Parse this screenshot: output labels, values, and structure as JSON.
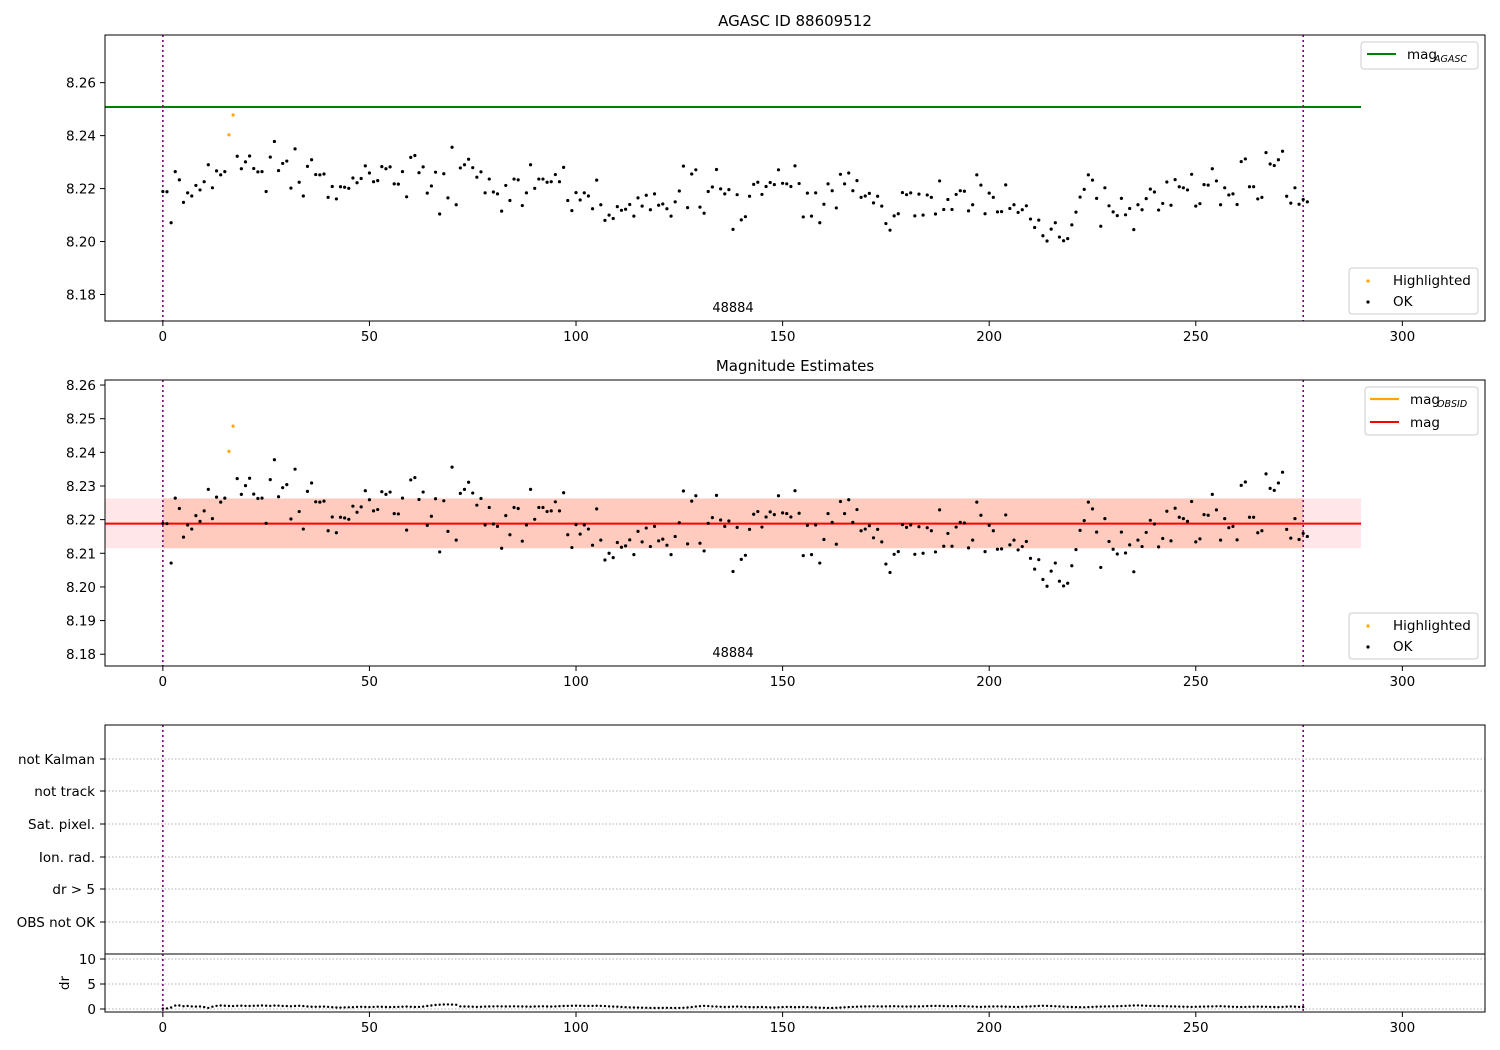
{
  "chart_data": [
    {
      "type": "scatter",
      "title": "AGASC ID 88609512",
      "xlim": [
        -14,
        320
      ],
      "ylim": [
        8.17,
        8.278
      ],
      "xticks": [
        0,
        50,
        100,
        150,
        200,
        250,
        300
      ],
      "yticks": [
        8.18,
        8.2,
        8.22,
        8.24,
        8.26
      ],
      "obsid_label": "48884",
      "obsid_label_x": 138,
      "vlines_x": [
        0,
        276
      ],
      "hlines": [
        {
          "y": 8.2508,
          "x0": -14,
          "x1": 290,
          "color": "#008000",
          "legend": "mag",
          "sub": "AGASC"
        }
      ],
      "highlighted_points": [
        [
          16,
          8.2403
        ],
        [
          17,
          8.2478
        ]
      ],
      "ok_series": "mags",
      "legend_top": [
        {
          "label": "mag",
          "sub": "AGASC",
          "color": "#008000",
          "kind": "line"
        }
      ],
      "legend_bottom": [
        {
          "label": "Highlighted",
          "color": "#ffa500",
          "kind": "dot"
        },
        {
          "label": "OK",
          "color": "#000000",
          "kind": "dot"
        }
      ]
    },
    {
      "type": "scatter",
      "title": "Magnitude Estimates",
      "xlim": [
        -14,
        320
      ],
      "ylim": [
        8.1765,
        8.2615
      ],
      "xticks": [
        0,
        50,
        100,
        150,
        200,
        250,
        300
      ],
      "yticks": [
        8.18,
        8.19,
        8.2,
        8.21,
        8.22,
        8.23,
        8.24,
        8.25,
        8.26
      ],
      "obsid_label": "48884",
      "obsid_label_x": 138,
      "vlines_x": [
        0,
        276
      ],
      "hlines": [
        {
          "y": 8.2188,
          "x0": -14,
          "x1": 290,
          "color": "#ff0000",
          "legend": "mag"
        }
      ],
      "bands": [
        {
          "y0": 8.2115,
          "y1": 8.2263,
          "x0": -14,
          "x1": 290,
          "color": "#ffb6c1",
          "opacity": 0.35
        },
        {
          "y0": 8.2115,
          "y1": 8.2263,
          "x0": 0,
          "x1": 276,
          "color": "#ffa07a",
          "opacity": 0.38
        }
      ],
      "highlighted_points": [
        [
          16,
          8.2403
        ],
        [
          17,
          8.2478
        ]
      ],
      "ok_series": "mags",
      "legend_top": [
        {
          "label": "mag",
          "sub": "OBSID",
          "color": "#ffa500",
          "kind": "line"
        },
        {
          "label": "mag",
          "color": "#ff0000",
          "kind": "line"
        }
      ],
      "legend_bottom": [
        {
          "label": "Highlighted",
          "color": "#ffa500",
          "kind": "dot"
        },
        {
          "label": "OK",
          "color": "#000000",
          "kind": "dot"
        }
      ]
    },
    {
      "type": "table",
      "title": "",
      "rows": [
        "not Kalman",
        "not track",
        "Sat. pixel.",
        "Ion. rad.",
        "dr > 5",
        "OBS not OK"
      ],
      "xlim": [
        -14,
        320
      ],
      "vlines_x": [
        0,
        276
      ]
    },
    {
      "type": "line",
      "title": "",
      "ylabel": "dr",
      "xlim": [
        -14,
        320
      ],
      "ylim": [
        -0.6,
        11
      ],
      "yticks": [
        0,
        5,
        10
      ],
      "xticks": [
        0,
        50,
        100,
        150,
        200,
        250,
        300
      ],
      "vlines_x": [
        0,
        276
      ],
      "series_ref": "dr"
    }
  ],
  "series": {
    "mags": [
      8.2189,
      8.2188,
      8.2071,
      8.2264,
      8.2233,
      8.2148,
      8.2184,
      8.2172,
      8.2212,
      8.2195,
      8.2226,
      8.229,
      8.2203,
      8.2267,
      8.2252,
      8.2264,
      8.2403,
      8.2478,
      8.2322,
      8.2275,
      8.2301,
      8.2323,
      8.2276,
      8.2263,
      8.2264,
      8.2189,
      8.2319,
      8.2378,
      8.2268,
      8.2295,
      8.2304,
      8.2202,
      8.235,
      8.2224,
      8.2172,
      8.2284,
      8.2309,
      8.2253,
      8.2252,
      8.2255,
      8.2167,
      8.2208,
      8.2161,
      8.2207,
      8.2205,
      8.2201,
      8.224,
      8.2222,
      8.2238,
      8.2286,
      8.2259,
      8.2226,
      8.223,
      8.2283,
      8.2275,
      8.2282,
      8.2218,
      8.2217,
      8.2264,
      8.2169,
      8.2318,
      8.2325,
      8.226,
      8.2282,
      8.2183,
      8.221,
      8.2262,
      8.2104,
      8.2256,
      8.2165,
      8.2356,
      8.2139,
      8.2278,
      8.229,
      8.2311,
      8.2279,
      8.2243,
      8.2263,
      8.2184,
      8.2236,
      8.2187,
      8.218,
      8.2115,
      8.2212,
      8.2155,
      8.2236,
      8.2233,
      8.2136,
      8.2184,
      8.229,
      8.2201,
      8.2236,
      8.2236,
      8.2224,
      8.2226,
      8.2253,
      8.2226,
      8.228,
      8.2155,
      8.2117,
      8.2185,
      8.2157,
      8.2184,
      8.2172,
      8.2124,
      8.2232,
      8.2139,
      8.208,
      8.21,
      8.2087,
      8.2132,
      8.2118,
      8.2122,
      8.214,
      8.2096,
      8.2165,
      8.2134,
      8.2175,
      8.212,
      8.218,
      8.2137,
      8.2142,
      8.2124,
      8.2096,
      8.215,
      8.2191,
      8.2285,
      8.2128,
      8.2255,
      8.2271,
      8.213,
      8.2107,
      8.2189,
      8.2206,
      8.2272,
      8.2199,
      8.218,
      8.2196,
      8.2046,
      8.2177,
      8.2082,
      8.2094,
      8.2171,
      8.2216,
      8.2224,
      8.2178,
      8.2208,
      8.2223,
      8.2215,
      8.2271,
      8.222,
      8.2218,
      8.2208,
      8.2286,
      8.2219,
      8.2093,
      8.2183,
      8.2096,
      8.2184,
      8.2071,
      8.2141,
      8.2218,
      8.2192,
      8.2127,
      8.2254,
      8.2218,
      8.2259,
      8.2192,
      8.223,
      8.2167,
      8.2172,
      8.2182,
      8.2146,
      8.2171,
      8.2134,
      8.2068,
      8.2043,
      8.2097,
      8.2105,
      8.2185,
      8.2177,
      8.2184,
      8.2097,
      8.2179,
      8.21,
      8.2176,
      8.2167,
      8.2104,
      8.2229,
      8.2121,
      8.2159,
      8.2121,
      8.2178,
      8.2192,
      8.219,
      8.2116,
      8.2139,
      8.2252,
      8.2213,
      8.2105,
      8.2183,
      8.2167,
      8.2112,
      8.2113,
      8.2214,
      8.2125,
      8.2139,
      8.211,
      8.212,
      8.2135,
      8.2085,
      8.2053,
      8.2081,
      8.2022,
      8.2002,
      8.2047,
      8.2071,
      8.2017,
      8.2003,
      8.2011,
      8.2063,
      8.2111,
      8.2168,
      8.2197,
      8.2252,
      8.2232,
      8.2163,
      8.2058,
      8.2203,
      8.2135,
      8.2112,
      8.2098,
      8.2163,
      8.2101,
      8.2125,
      8.2045,
      8.2139,
      8.212,
      8.2162,
      8.2198,
      8.2187,
      8.2119,
      8.2144,
      8.2225,
      8.2137,
      8.2234,
      8.2207,
      8.2203,
      8.2195,
      8.2254,
      8.2134,
      8.2143,
      8.2215,
      8.2213,
      8.2275,
      8.2229,
      8.2139,
      8.2203,
      8.2176,
      8.218,
      8.214,
      8.2302,
      8.2312,
      8.2207,
      8.2207,
      8.2161,
      8.2167,
      8.2336,
      8.2293,
      8.2287,
      8.2309,
      8.2341,
      8.2171,
      8.2145,
      8.2203,
      8.2141,
      8.2159,
      8.215
    ],
    "dr": [
      0.08,
      0.12,
      0.3,
      0.68,
      0.7,
      0.55,
      0.6,
      0.52,
      0.48,
      0.5,
      0.38,
      0.22,
      0.45,
      0.62,
      0.7,
      0.65,
      0.6,
      0.58,
      0.64,
      0.66,
      0.62,
      0.6,
      0.64,
      0.66,
      0.7,
      0.66,
      0.62,
      0.68,
      0.66,
      0.6,
      0.58,
      0.54,
      0.6,
      0.64,
      0.58,
      0.5,
      0.45,
      0.44,
      0.46,
      0.48,
      0.42,
      0.36,
      0.3,
      0.28,
      0.32,
      0.34,
      0.36,
      0.42,
      0.44,
      0.4,
      0.38,
      0.42,
      0.46,
      0.44,
      0.4,
      0.38,
      0.4,
      0.42,
      0.46,
      0.48,
      0.44,
      0.4,
      0.42,
      0.48,
      0.6,
      0.7,
      0.8,
      0.86,
      0.9,
      0.92,
      0.88,
      0.84,
      0.52,
      0.5,
      0.48,
      0.46,
      0.42,
      0.44,
      0.48,
      0.5,
      0.52,
      0.54,
      0.52,
      0.5,
      0.52,
      0.54,
      0.52,
      0.5,
      0.48,
      0.46,
      0.5,
      0.52,
      0.54,
      0.5,
      0.48,
      0.52,
      0.56,
      0.6,
      0.62,
      0.64,
      0.66,
      0.64,
      0.62,
      0.6,
      0.62,
      0.64,
      0.62,
      0.58,
      0.52,
      0.48,
      0.46,
      0.4,
      0.36,
      0.32,
      0.3,
      0.28,
      0.26,
      0.24,
      0.22,
      0.2,
      0.2,
      0.22,
      0.24,
      0.22,
      0.2,
      0.22,
      0.24,
      0.3,
      0.38,
      0.48,
      0.56,
      0.62,
      0.58,
      0.52,
      0.48,
      0.44,
      0.4,
      0.42,
      0.46,
      0.48,
      0.46,
      0.42,
      0.38,
      0.36,
      0.38,
      0.4,
      0.36,
      0.32,
      0.3,
      0.34,
      0.38,
      0.42,
      0.4,
      0.36,
      0.38,
      0.4,
      0.38,
      0.34,
      0.3,
      0.26,
      0.24,
      0.22,
      0.2,
      0.24,
      0.28,
      0.34,
      0.38,
      0.42,
      0.46,
      0.48,
      0.5,
      0.52,
      0.54,
      0.52,
      0.5,
      0.52,
      0.54,
      0.56,
      0.52,
      0.5,
      0.48,
      0.5,
      0.52,
      0.5,
      0.54,
      0.58,
      0.6,
      0.62,
      0.6,
      0.58,
      0.56,
      0.54,
      0.56,
      0.58,
      0.56,
      0.52,
      0.48,
      0.44,
      0.42,
      0.46,
      0.48,
      0.5,
      0.52,
      0.5,
      0.46,
      0.44,
      0.42,
      0.4,
      0.44,
      0.48,
      0.52,
      0.56,
      0.6,
      0.64,
      0.62,
      0.58,
      0.54,
      0.5,
      0.46,
      0.42,
      0.4,
      0.38,
      0.36,
      0.34,
      0.38,
      0.42,
      0.46,
      0.48,
      0.5,
      0.52,
      0.54,
      0.56,
      0.58,
      0.62,
      0.66,
      0.7,
      0.72,
      0.68,
      0.64,
      0.62,
      0.6,
      0.58,
      0.56,
      0.54,
      0.52,
      0.5,
      0.48,
      0.46,
      0.44,
      0.42,
      0.44,
      0.46,
      0.48,
      0.5,
      0.52,
      0.54,
      0.56,
      0.52,
      0.48,
      0.44,
      0.42,
      0.4,
      0.42,
      0.44,
      0.46,
      0.48,
      0.46,
      0.44,
      0.42,
      0.4,
      0.38,
      0.42,
      0.46,
      0.5,
      0.46,
      0.42,
      0.4
    ]
  }
}
